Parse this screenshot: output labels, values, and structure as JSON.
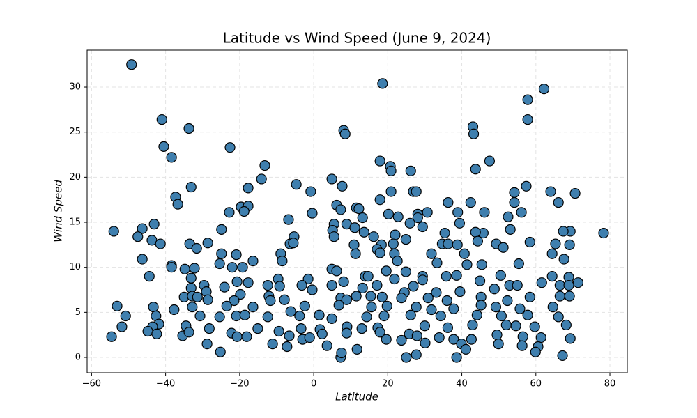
{
  "chart_data": {
    "type": "scatter",
    "title": "Latitude vs Wind Speed (June 9, 2024)",
    "x_label": "Latitude",
    "y_label": "Wind Speed",
    "color": "#3f7fae",
    "edge_color": "#000000",
    "grid": true,
    "xlim": [
      -61.2,
      84.7
    ],
    "ylim": [
      -1.7,
      34.1
    ],
    "xticks": [
      {
        "value": -60,
        "label": "−60"
      },
      {
        "value": -40,
        "label": "−40"
      },
      {
        "value": -20,
        "label": "−20"
      },
      0,
      20,
      40,
      60,
      80
    ],
    "yticks": [
      0,
      5,
      10,
      15,
      20,
      25,
      30
    ],
    "x": [
      -49.2,
      18.6,
      62.2,
      57.8,
      -41.0,
      -33.7,
      43,
      43.2,
      8.1,
      8.5,
      57.8,
      -40.5,
      -22.6,
      -38.4,
      17.9,
      47.5,
      20.7,
      -13.2,
      20.9,
      26.2,
      43.7,
      -14.1,
      4.9,
      -33.1,
      -4.7,
      -17.7,
      7.7,
      57.4,
      -0.8,
      20.9,
      26.9,
      27.7,
      54.2,
      64,
      70.6,
      -37.3,
      17.9,
      36.3,
      -36.7,
      42.4,
      54.2,
      66.1,
      -19.6,
      -17.7,
      6.2,
      11.5,
      12.2,
      -18.8,
      -22.8,
      -0.4,
      7.3,
      20.2,
      28.1,
      30.7,
      38.9,
      46.1,
      56.1,
      -6.8,
      13.2,
      22.8,
      28.1,
      52.5,
      5.5,
      8.9,
      26,
      29.4,
      39.4,
      -43.1,
      -54.0,
      -46.3,
      -24.9,
      5.1,
      11.1,
      13.6,
      35.4,
      45.8,
      53.1,
      78.3,
      69.3,
      67.4,
      -47.5,
      -5.3,
      5.5,
      16.2,
      22.0,
      24.9,
      43.7,
      44.3,
      -43.7,
      -28.6,
      -33.5,
      -41.4,
      -6.4,
      -5.5,
      10.9,
      18.3,
      21.5,
      34.7,
      36.3,
      38.8,
      49.3,
      58.4,
      65.3,
      69.1,
      -31.6,
      17.1,
      51.2,
      -24.9,
      -20.9,
      -8.9,
      11.3,
      17.9,
      21.8,
      31.8,
      40.7,
      64.4,
      -46.3,
      -16.4,
      -8.5,
      22.6,
      33.3,
      55.4,
      67.6,
      -25.4,
      -38.4,
      -38.4,
      -19.2,
      -22.0,
      4.9,
      6.2,
      19.6,
      24.9,
      41.4,
      45.4,
      -34.8,
      -32.2,
      13.9,
      14.7,
      29.4,
      35.8,
      50.5,
      38.6,
      64.4,
      68.9,
      -44.4,
      -33.1,
      -1.5,
      -9.6,
      21.8,
      -20.7,
      -17.7,
      8.1,
      29.4,
      44.9,
      61.6,
      71.4,
      -9.2,
      -12.4,
      -3.2,
      4.9,
      17.1,
      26.9,
      52.9,
      55.0,
      66.5,
      68.9,
      -29.6,
      -24.1,
      -33.1,
      -29.0,
      -0.4,
      13.2,
      24.5,
      33.1,
      39.5,
      48.8,
      -19.8,
      -12.1,
      7.3,
      11.5,
      15.4,
      18.5,
      23.7,
      30.9,
      45.2,
      58.4,
      66.5,
      69.1,
      -35.0,
      -32.8,
      -31.4,
      -28.6,
      -7.9,
      8.9,
      36.0,
      52.3,
      -11.7,
      -21.5,
      -43.3,
      -32.8,
      -23.5,
      -16.4,
      -6.2,
      -2.4,
      6.8,
      15.6,
      19.8,
      27.7,
      31.8,
      37.8,
      45.2,
      49.2,
      55.7,
      64.6,
      -53.1,
      -37.7,
      -50.8,
      -42.6,
      -30.7,
      -25.4,
      -20.9,
      -18.6,
      -12.4,
      -3.8,
      1.5,
      4.9,
      14.3,
      19.0,
      26.2,
      34.3,
      44.1,
      50.7,
      57.8,
      66.1,
      -41.8,
      -51.8,
      -43.5,
      -34.5,
      -28.2,
      -15.1,
      -9.4,
      -3.4,
      1.7,
      9.0,
      13.0,
      17.3,
      30.0,
      36.2,
      42.9,
      52.0,
      54.6,
      59.7,
      68.2,
      -44.8,
      -42.4,
      -35.4,
      -33.7,
      -22.2,
      -20.7,
      -18.1,
      -6.6,
      -3.0,
      -1.1,
      2.3,
      8.9,
      17.9,
      25.8,
      27.9,
      33.9,
      37.8,
      42.6,
      49.5,
      56.5,
      61.4,
      69.3,
      -54.6,
      -28.8,
      -11.1,
      -7.2,
      3.6,
      19.6,
      23.7,
      30.1,
      39.9,
      49.9,
      56.3,
      60.6,
      -25.2,
      11.7,
      27.7,
      41.1,
      59.9,
      67.2,
      7.3,
      25.0,
      38.6,
      7.5
    ],
    "values": [
      32.5,
      30.4,
      29.8,
      28.6,
      26.4,
      25.4,
      25.6,
      24.8,
      25.2,
      24.8,
      26.4,
      23.4,
      23.3,
      22.2,
      21.8,
      21.8,
      21.2,
      21.3,
      20.7,
      20.7,
      20.9,
      19.8,
      19.8,
      18.9,
      19.2,
      18.8,
      19.0,
      19.0,
      18.4,
      18.4,
      18.4,
      18.4,
      18.3,
      18.4,
      18.2,
      17.8,
      17.5,
      17.2,
      17.0,
      17.2,
      17.2,
      17.2,
      16.7,
      16.8,
      16.9,
      16.6,
      16.5,
      16.2,
      16.1,
      16.0,
      16.4,
      15.9,
      15.9,
      16.1,
      16.1,
      16.1,
      16.1,
      15.3,
      15.5,
      15.6,
      15.5,
      15.6,
      14.8,
      14.8,
      14.9,
      14.5,
      14.9,
      14.8,
      14.0,
      14.3,
      14.2,
      14.1,
      14.4,
      13.9,
      13.8,
      13.8,
      14.2,
      13.8,
      14.0,
      14.0,
      13.4,
      13.4,
      13.4,
      13.4,
      13.6,
      13.1,
      13.9,
      12.9,
      13.0,
      12.7,
      12.6,
      12.6,
      12.6,
      12.7,
      12.5,
      12.5,
      12.6,
      12.6,
      12.6,
      12.5,
      12.6,
      12.8,
      12.6,
      12.5,
      12.1,
      12.0,
      12.2,
      11.5,
      11.4,
      11.5,
      11.5,
      11.6,
      11.5,
      11.5,
      11.5,
      11.5,
      10.9,
      10.7,
      10.7,
      10.7,
      10.5,
      10.4,
      10.9,
      10.4,
      10.2,
      10.0,
      10.0,
      10.0,
      9.8,
      9.6,
      9.6,
      9.5,
      10.3,
      10.3,
      9.8,
      9.9,
      9.0,
      9.0,
      9.0,
      9.0,
      9.1,
      9.1,
      9.0,
      8.9,
      9.0,
      8.8,
      8.7,
      8.7,
      8.7,
      8.4,
      8.3,
      8.4,
      8.6,
      8.5,
      8.3,
      8.3,
      7.9,
      8.0,
      8.0,
      8.0,
      8.0,
      7.9,
      8.0,
      8.0,
      8.0,
      8.0,
      8.0,
      7.8,
      7.7,
      7.3,
      7.5,
      7.7,
      7.2,
      7.2,
      7.3,
      7.6,
      7.0,
      6.8,
      6.6,
      6.8,
      6.8,
      6.7,
      6.6,
      6.6,
      6.7,
      6.7,
      6.8,
      6.8,
      6.7,
      6.8,
      6.7,
      6.4,
      6.4,
      6.4,
      6.3,
      6.3,
      6.3,
      6.3,
      5.6,
      5.6,
      5.7,
      5.6,
      5.1,
      5.7,
      5.8,
      5.6,
      5.7,
      5.6,
      5.3,
      5.4,
      5.8,
      5.6,
      5.4,
      5.6,
      5.7,
      5.3,
      4.6,
      4.6,
      4.6,
      4.5,
      4.6,
      4.7,
      4.5,
      4.6,
      4.7,
      4.3,
      4.5,
      4.6,
      4.7,
      4.6,
      4.7,
      4.6,
      4.7,
      4.5,
      3.7,
      3.4,
      3.4,
      3.5,
      3.2,
      3.2,
      2.9,
      3.2,
      3.1,
      3.4,
      3.2,
      3.3,
      3.5,
      3.3,
      3.6,
      3.6,
      3.5,
      3.4,
      3.6,
      2.9,
      2.6,
      2.4,
      2.8,
      2.7,
      2.3,
      2.3,
      2.4,
      2.0,
      2.2,
      2.6,
      2.7,
      2.8,
      2.6,
      2.4,
      2.2,
      2.0,
      2.0,
      2.5,
      2.3,
      2.2,
      2.1,
      2.3,
      1.5,
      1.5,
      1.2,
      1.3,
      2.0,
      1.9,
      1.6,
      1.5,
      1.5,
      1.3,
      1.2,
      0.6,
      0.9,
      0.3,
      0.9,
      0.6,
      0.2,
      0.0,
      0.0,
      0.0,
      0.5
    ]
  }
}
